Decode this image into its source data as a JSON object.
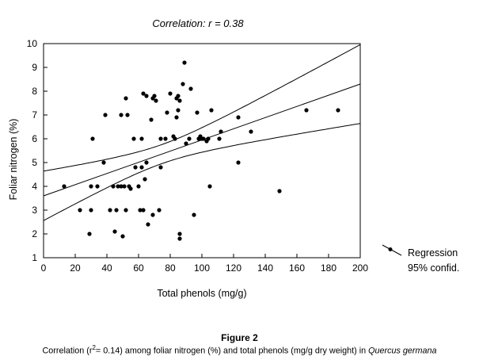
{
  "chart_data": {
    "type": "scatter",
    "title": "Correlation: r = 0.38",
    "xlabel": "Total phenols (mg/g)",
    "ylabel": "Foliar nitrogen (%)",
    "xlim": [
      0,
      200
    ],
    "ylim": [
      1,
      10
    ],
    "x_ticks": [
      "0",
      "20",
      "40",
      "60",
      "80",
      "100",
      "120",
      "140",
      "160",
      "180",
      "200"
    ],
    "y_ticks": [
      "1",
      "2",
      "3",
      "4",
      "5",
      "6",
      "7",
      "8",
      "9",
      "10"
    ],
    "grid": false,
    "legend": {
      "placement": "right",
      "entries": [
        "Regression",
        "95% confid."
      ]
    },
    "points": [
      [
        13,
        4.0
      ],
      [
        23,
        3.0
      ],
      [
        29,
        2.0
      ],
      [
        30,
        3.0
      ],
      [
        30,
        4.0
      ],
      [
        31,
        6.0
      ],
      [
        34,
        4.0
      ],
      [
        38,
        5.0
      ],
      [
        39,
        7.0
      ],
      [
        42,
        3.0
      ],
      [
        44,
        4.0
      ],
      [
        45,
        2.1
      ],
      [
        46,
        3.0
      ],
      [
        47,
        4.0
      ],
      [
        49,
        4.0
      ],
      [
        49,
        7.0
      ],
      [
        50,
        1.9
      ],
      [
        51,
        4.0
      ],
      [
        52,
        3.0
      ],
      [
        52,
        7.7
      ],
      [
        53,
        7.0
      ],
      [
        54,
        4.0
      ],
      [
        55,
        3.9
      ],
      [
        57,
        6.0
      ],
      [
        58,
        4.8
      ],
      [
        60,
        4.0
      ],
      [
        61,
        3.0
      ],
      [
        62,
        4.8
      ],
      [
        62,
        6.0
      ],
      [
        63,
        3.0
      ],
      [
        63,
        7.9
      ],
      [
        64,
        4.3
      ],
      [
        65,
        5.0
      ],
      [
        65,
        7.8
      ],
      [
        66,
        2.4
      ],
      [
        68,
        6.8
      ],
      [
        69,
        2.8
      ],
      [
        69,
        7.7
      ],
      [
        70,
        7.8
      ],
      [
        71,
        7.6
      ],
      [
        73,
        3.0
      ],
      [
        74,
        4.8
      ],
      [
        74,
        6.0
      ],
      [
        77,
        6.0
      ],
      [
        78,
        7.1
      ],
      [
        80,
        7.9
      ],
      [
        82,
        6.1
      ],
      [
        83,
        6.0
      ],
      [
        84,
        6.9
      ],
      [
        84,
        7.7
      ],
      [
        85,
        7.2
      ],
      [
        85,
        7.8
      ],
      [
        86,
        7.6
      ],
      [
        86,
        1.8
      ],
      [
        86,
        2.0
      ],
      [
        88,
        8.3
      ],
      [
        89,
        9.2
      ],
      [
        90,
        5.8
      ],
      [
        92,
        6.0
      ],
      [
        93,
        8.1
      ],
      [
        95,
        2.8
      ],
      [
        97,
        7.1
      ],
      [
        98,
        6.0
      ],
      [
        99,
        6.1
      ],
      [
        100,
        6.0
      ],
      [
        101,
        6.0
      ],
      [
        103,
        5.9
      ],
      [
        104,
        6.0
      ],
      [
        105,
        4.0
      ],
      [
        106,
        7.2
      ],
      [
        111,
        6.0
      ],
      [
        112,
        6.3
      ],
      [
        123,
        6.9
      ],
      [
        123,
        5.0
      ],
      [
        131,
        6.3
      ],
      [
        149,
        3.8
      ],
      [
        166,
        7.2
      ],
      [
        186,
        7.2
      ]
    ],
    "regression": {
      "intercept": 3.6,
      "slope": 0.0235
    }
  },
  "figure": {
    "label": "Figure 2",
    "caption_pre": "Correlation (r",
    "caption_sup": "2",
    "caption_mid": "= 0.14) among foliar nitrogen (%) and total phenols (mg/g dry weight) in ",
    "caption_species": "Quercus germana"
  }
}
